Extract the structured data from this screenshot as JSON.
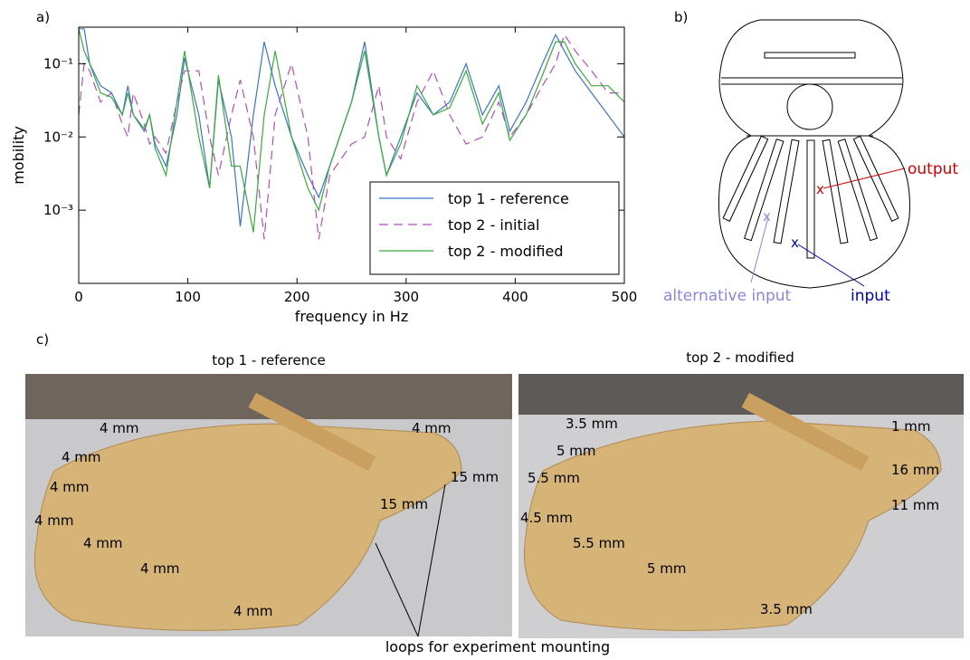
{
  "panels": {
    "a": "a)",
    "b": "b)",
    "c": "c)"
  },
  "chart_data": {
    "type": "line",
    "xlabel": "frequency in Hz",
    "ylabel": "mobility",
    "x": [
      0,
      5,
      10,
      20,
      30,
      40,
      45,
      50,
      60,
      65,
      70,
      80,
      90,
      97,
      110,
      120,
      128,
      140,
      148,
      160,
      170,
      180,
      195,
      210,
      220,
      230,
      250,
      262,
      275,
      282,
      295,
      310,
      325,
      340,
      355,
      370,
      385,
      395,
      410,
      425,
      437,
      445,
      455,
      470,
      485,
      500
    ],
    "series": [
      {
        "name": "top 1 - reference",
        "color": "#3a75c4",
        "dash": false,
        "values": [
          0.3,
          0.3,
          0.1,
          0.05,
          0.04,
          0.02,
          0.05,
          0.02,
          0.012,
          0.02,
          0.008,
          0.004,
          0.02,
          0.12,
          0.02,
          0.002,
          0.06,
          0.01,
          0.0006,
          0.02,
          0.2,
          0.05,
          0.01,
          0.003,
          0.0015,
          0.004,
          0.03,
          0.2,
          0.01,
          0.003,
          0.01,
          0.04,
          0.02,
          0.03,
          0.1,
          0.02,
          0.05,
          0.012,
          0.03,
          0.1,
          0.25,
          0.15,
          0.08,
          0.04,
          0.02,
          0.01
        ]
      },
      {
        "name": "top 2 - initial",
        "color": "#b04fbf",
        "dash": true,
        "values": [
          0.02,
          0.1,
          0.08,
          0.03,
          0.04,
          0.015,
          0.01,
          0.04,
          0.015,
          0.008,
          0.01,
          0.006,
          0.03,
          0.08,
          0.08,
          0.01,
          0.003,
          0.02,
          0.06,
          0.01,
          0.0004,
          0.02,
          0.1,
          0.01,
          0.0004,
          0.003,
          0.008,
          0.01,
          0.05,
          0.01,
          0.005,
          0.03,
          0.08,
          0.02,
          0.008,
          0.01,
          0.03,
          0.01,
          0.02,
          0.05,
          0.1,
          0.25,
          0.15,
          0.08,
          0.04,
          0.04
        ]
      },
      {
        "name": "top 2 - modified",
        "color": "#3aaa3a",
        "dash": false,
        "values": [
          0.3,
          0.15,
          0.1,
          0.04,
          0.035,
          0.02,
          0.04,
          0.02,
          0.013,
          0.02,
          0.007,
          0.003,
          0.03,
          0.15,
          0.01,
          0.002,
          0.07,
          0.004,
          0.004,
          0.0005,
          0.02,
          0.15,
          0.01,
          0.002,
          0.001,
          0.004,
          0.03,
          0.15,
          0.01,
          0.003,
          0.008,
          0.05,
          0.02,
          0.025,
          0.08,
          0.015,
          0.04,
          0.009,
          0.02,
          0.07,
          0.2,
          0.2,
          0.1,
          0.05,
          0.05,
          0.03
        ]
      }
    ],
    "xlim": [
      0,
      500
    ],
    "xticks": [
      0,
      100,
      200,
      300,
      400,
      500
    ],
    "ylim": [
      0.0001,
      0.316
    ],
    "log_y": true,
    "yticks": [
      {
        "value": 0.001,
        "label": "10⁻³"
      },
      {
        "value": 0.01,
        "label": "10⁻²"
      },
      {
        "value": 0.1,
        "label": "10⁻¹"
      }
    ],
    "legend": "lower right"
  },
  "diagram": {
    "output": "output",
    "alternative_input": "alternative input",
    "input": "input",
    "markers": [
      "x",
      "x",
      "x"
    ]
  },
  "photos": {
    "left": {
      "title": "top 1 - reference",
      "labels": [
        "4 mm",
        "4 mm",
        "4 mm",
        "4 mm",
        "4 mm",
        "4 mm",
        "4 mm",
        "4 mm",
        "15 mm",
        "15 mm"
      ]
    },
    "right": {
      "title": "top 2 - modified",
      "labels": [
        "3.5 mm",
        "5 mm",
        "5.5 mm",
        "4.5 mm",
        "5.5 mm",
        "5 mm",
        "3.5 mm",
        "1 mm",
        "16 mm",
        "11 mm"
      ]
    },
    "caption": "loops for experiment mounting"
  }
}
